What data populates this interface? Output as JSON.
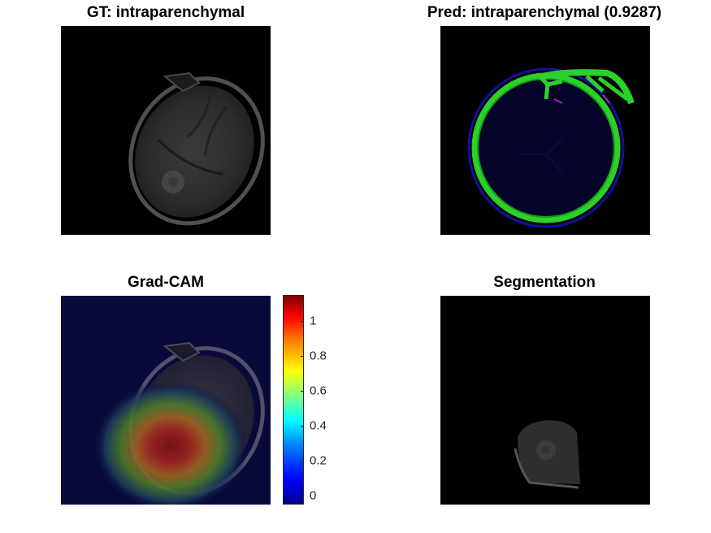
{
  "panels": {
    "gt": {
      "title": "GT: intraparenchymal"
    },
    "pred": {
      "title": "Pred: intraparenchymal (0.9287)"
    },
    "gradcam": {
      "title": "Grad-CAM"
    },
    "segmentation": {
      "title": "Segmentation"
    }
  },
  "colorbar": {
    "colormap": "jet",
    "range": [
      -0.05,
      1.15
    ],
    "ticks": [
      {
        "value": 1,
        "label": "1"
      },
      {
        "value": 0.8,
        "label": "0.8"
      },
      {
        "value": 0.6,
        "label": "0.6"
      },
      {
        "value": 0.4,
        "label": "0.4"
      },
      {
        "value": 0.2,
        "label": "0.2"
      },
      {
        "value": 0,
        "label": "0"
      }
    ]
  },
  "colors": {
    "background": "#ffffff",
    "image_background": "#000000",
    "bone_edge_green": "#2bd12b",
    "overlay_navy": "#0a0a3a",
    "hotspot_red": "#a01010"
  }
}
